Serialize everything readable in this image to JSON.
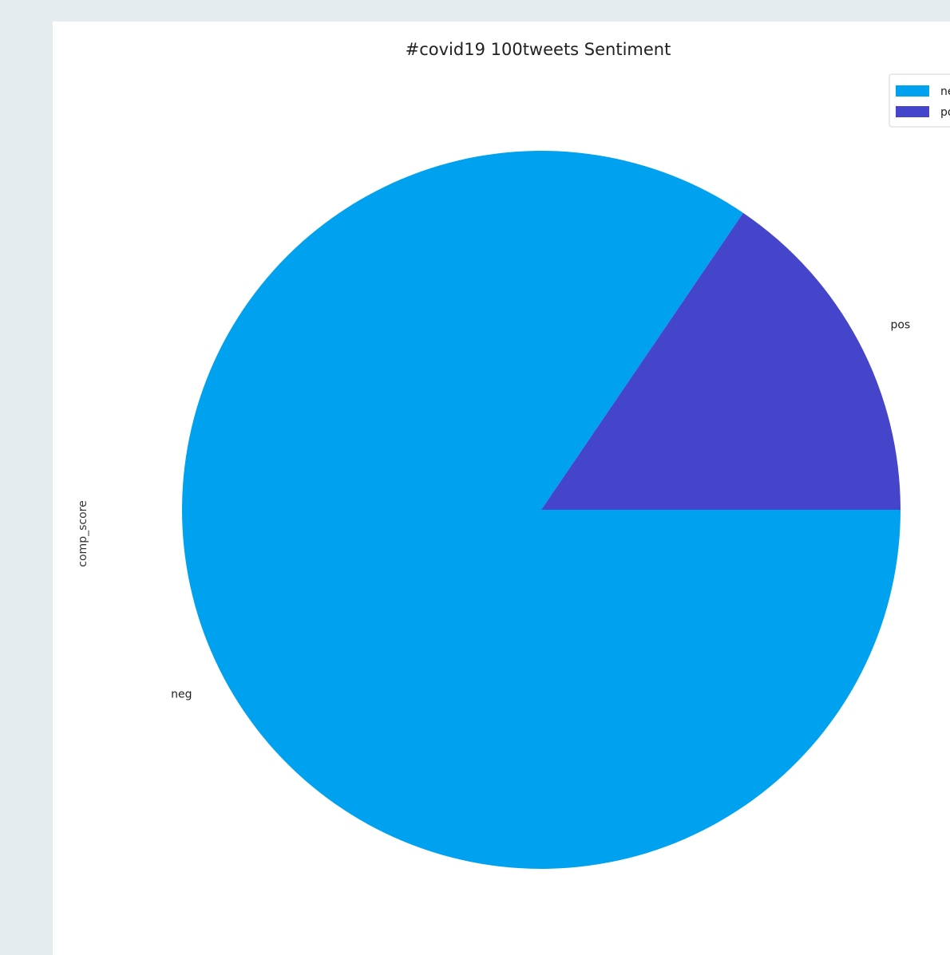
{
  "chart_data": {
    "type": "pie",
    "title": "#covid19 100tweets Sentiment",
    "ylabel": "comp_score",
    "categories": [
      "neg",
      "pos"
    ],
    "values": [
      84.5,
      15.5
    ],
    "colors": [
      "#00a2f0",
      "#4545cc"
    ],
    "start_angle_deg": 0,
    "direction": "clockwise",
    "legend": {
      "placement": "top-right",
      "entries": [
        "neg",
        "pos"
      ]
    }
  }
}
